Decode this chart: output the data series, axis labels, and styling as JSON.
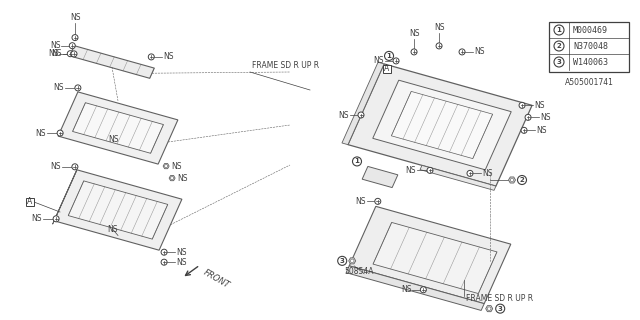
{
  "bg_color": "#ffffff",
  "line_color": "#606060",
  "text_color": "#404040",
  "title_id": "A505001741",
  "legend": [
    {
      "num": "1",
      "code": "M000469"
    },
    {
      "num": "2",
      "code": "N370048"
    },
    {
      "num": "3",
      "code": "W140063"
    }
  ],
  "font_size_ns": 5.5,
  "font_size_label": 5.5,
  "font_size_legend": 6.0,
  "font_size_id": 5.5
}
